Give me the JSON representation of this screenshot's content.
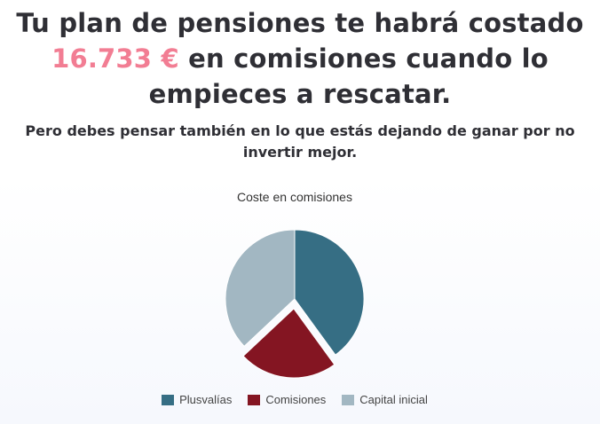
{
  "header": {
    "line1": "Tu plan de pensiones te habrá costado",
    "amount": "16.733 €",
    "line2_rest": "en comisiones cuando lo",
    "line3": "empieces a rescatar.",
    "subtitle": "Pero debes pensar también en lo que estás dejando de ganar por no invertir mejor."
  },
  "colors": {
    "accent_amount": "#f27d93",
    "plusvalias": "#366e84",
    "comisiones": "#841522",
    "capital": "#a2b7c2"
  },
  "chart_data": {
    "type": "pie",
    "title": "Coste en comisiones",
    "legend_position": "bottom",
    "slices": [
      {
        "name": "Plusvalías",
        "value": 40,
        "color": "#366e84",
        "exploded": false
      },
      {
        "name": "Comisiones",
        "value": 23,
        "color": "#841522",
        "exploded": true
      },
      {
        "name": "Capital inicial",
        "value": 37,
        "color": "#a2b7c2",
        "exploded": false
      }
    ]
  }
}
